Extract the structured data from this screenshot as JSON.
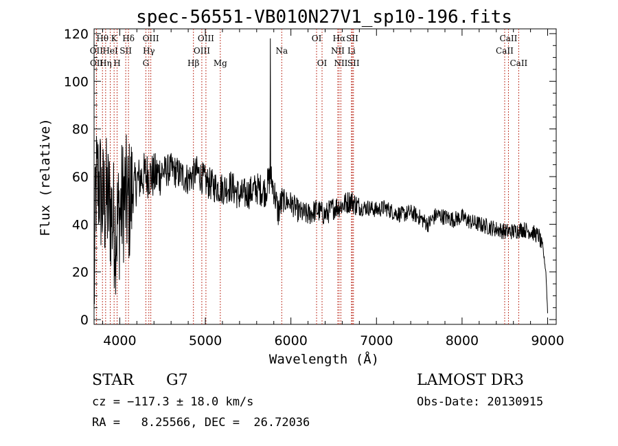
{
  "chart_data": {
    "type": "line",
    "title": "spec-56551-VB010N27V1_sp10-196.fits",
    "xlabel": "Wavelength (Å)",
    "ylabel": "Flux (relative)",
    "xlim": [
      3700,
      9100
    ],
    "ylim": [
      -2,
      122
    ],
    "xticks": [
      4000,
      5000,
      6000,
      7000,
      8000,
      9000
    ],
    "xtick_labels": [
      "4000",
      "5000",
      "6000",
      "7000",
      "8000",
      "9000"
    ],
    "yticks": [
      0,
      20,
      40,
      60,
      80,
      100,
      120
    ],
    "ytick_labels": [
      "0",
      "20",
      "40",
      "60",
      "80",
      "100",
      "120"
    ],
    "grid": false,
    "spectral_lines": [
      {
        "label": "Hθ",
        "wavelength": 3798,
        "row": 0
      },
      {
        "label": "K",
        "wavelength": 3934,
        "row": 0
      },
      {
        "label": "Hδ",
        "wavelength": 4102,
        "row": 0
      },
      {
        "label": "OII",
        "wavelength": 3727,
        "row": 1
      },
      {
        "label": "HeI",
        "wavelength": 3889,
        "row": 1
      },
      {
        "label": "SII",
        "wavelength": 4070,
        "row": 1
      },
      {
        "label": "OII",
        "wavelength": 3729,
        "row": 2
      },
      {
        "label": "Hη",
        "wavelength": 3835,
        "row": 2
      },
      {
        "label": "H",
        "wavelength": 3969,
        "row": 2
      },
      {
        "label": "OIII",
        "wavelength": 4363,
        "row": 0
      },
      {
        "label": "Hγ",
        "wavelength": 4340,
        "row": 1
      },
      {
        "label": "G",
        "wavelength": 4305,
        "row": 2
      },
      {
        "label": "OIII",
        "wavelength": 5007,
        "row": 0
      },
      {
        "label": "OIII",
        "wavelength": 4959,
        "row": 1
      },
      {
        "label": "Hβ",
        "wavelength": 4861,
        "row": 2
      },
      {
        "label": "Mg",
        "wavelength": 5175,
        "row": 2
      },
      {
        "label": "Na",
        "wavelength": 5893,
        "row": 1
      },
      {
        "label": "OI",
        "wavelength": 6300,
        "row": 0
      },
      {
        "label": "OI",
        "wavelength": 6364,
        "row": 2
      },
      {
        "label": "Hα",
        "wavelength": 6563,
        "row": 0
      },
      {
        "label": "SII",
        "wavelength": 6717,
        "row": 0
      },
      {
        "label": "NII",
        "wavelength": 6548,
        "row": 1
      },
      {
        "label": "Li",
        "wavelength": 6708,
        "row": 1
      },
      {
        "label": "NII",
        "wavelength": 6584,
        "row": 2
      },
      {
        "label": "SII",
        "wavelength": 6731,
        "row": 2
      },
      {
        "label": "CaII",
        "wavelength": 8542,
        "row": 0
      },
      {
        "label": "CaII",
        "wavelength": 8498,
        "row": 1
      },
      {
        "label": "CaII",
        "wavelength": 8662,
        "row": 2
      }
    ],
    "spectrum_anchors": [
      [
        3700,
        8
      ],
      [
        3720,
        55
      ],
      [
        3760,
        58
      ],
      [
        3800,
        48
      ],
      [
        3850,
        50
      ],
      [
        3900,
        45
      ],
      [
        3950,
        38
      ],
      [
        4000,
        44
      ],
      [
        4050,
        52
      ],
      [
        4100,
        48
      ],
      [
        4150,
        54
      ],
      [
        4200,
        58
      ],
      [
        4300,
        61
      ],
      [
        4400,
        60
      ],
      [
        4500,
        62
      ],
      [
        4600,
        63
      ],
      [
        4700,
        61
      ],
      [
        4800,
        59
      ],
      [
        4900,
        62
      ],
      [
        5000,
        58
      ],
      [
        5100,
        56
      ],
      [
        5200,
        55
      ],
      [
        5300,
        56
      ],
      [
        5400,
        52
      ],
      [
        5500,
        53
      ],
      [
        5600,
        55
      ],
      [
        5700,
        54
      ],
      [
        5760,
        60
      ],
      [
        5800,
        55
      ],
      [
        5850,
        45
      ],
      [
        5900,
        50
      ],
      [
        6000,
        49
      ],
      [
        6100,
        45
      ],
      [
        6200,
        44
      ],
      [
        6300,
        46
      ],
      [
        6400,
        44
      ],
      [
        6500,
        47
      ],
      [
        6600,
        48
      ],
      [
        6700,
        50
      ],
      [
        6800,
        47
      ],
      [
        6900,
        47
      ],
      [
        7000,
        46
      ],
      [
        7100,
        47
      ],
      [
        7200,
        45
      ],
      [
        7300,
        44
      ],
      [
        7400,
        45
      ],
      [
        7500,
        43
      ],
      [
        7600,
        40
      ],
      [
        7700,
        44
      ],
      [
        7800,
        43
      ],
      [
        7900,
        42
      ],
      [
        8000,
        43
      ],
      [
        8100,
        41
      ],
      [
        8200,
        40
      ],
      [
        8300,
        39
      ],
      [
        8400,
        38
      ],
      [
        8500,
        37
      ],
      [
        8600,
        37
      ],
      [
        8700,
        38
      ],
      [
        8800,
        37
      ],
      [
        8900,
        35
      ],
      [
        8950,
        28
      ],
      [
        8980,
        20
      ],
      [
        9000,
        3
      ]
    ],
    "spike": {
      "x": 5760,
      "y": 118
    }
  },
  "info": {
    "object_type": "STAR",
    "subclass": "G7",
    "survey": "LAMOST DR3",
    "redshift_line": "cz = −117.3 ± 18.0 km/s",
    "obs_date": "Obs-Date: 20130915",
    "coords": "RA =   8.25566, DEC =  26.72036"
  }
}
